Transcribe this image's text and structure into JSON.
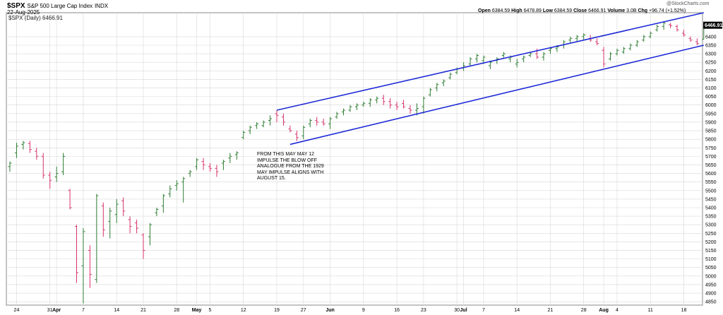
{
  "header": {
    "symbol": "$SPX",
    "name": "S&P 500 Large Cap Index",
    "exchange": "INDX",
    "date": "22-Aug-2025",
    "legend": "$SPX (Daily) 6466.91",
    "brand": "@StockCharts.com",
    "ohlc": {
      "open_label": "Open",
      "open": "6384.59",
      "high_label": "High",
      "high": "6478.89",
      "low_label": "Low",
      "low": "6384.59",
      "close_label": "Close",
      "close": "6466.91",
      "volume_label": "Volume",
      "volume": "3.0B",
      "chg_label": "Chg",
      "chg": "+96.74 (+1.52%)"
    }
  },
  "annotation": [
    "FROM THIS MAY MAY 12",
    "IMPULSE THE BLOW OFF",
    "ANALOGUE FROM THE 1929",
    "MAY IMPULSE ALIGNS WITH",
    "AUGUST 15."
  ],
  "colors": {
    "up": "#2e7d32",
    "down": "#d6336c",
    "channel": "#1f2bd6",
    "grid": "#d8d8d8",
    "last_price_box": "#000000"
  },
  "chart_data": {
    "type": "ohlc",
    "title": "$SPX (Daily) 6466.91",
    "ylim": [
      4830,
      6540
    ],
    "y_ticks": [
      4850,
      4900,
      4950,
      5000,
      5050,
      5100,
      5150,
      5200,
      5250,
      5300,
      5350,
      5400,
      5450,
      5500,
      5550,
      5600,
      5650,
      5700,
      5750,
      5800,
      5850,
      5900,
      5950,
      6000,
      6050,
      6100,
      6150,
      6200,
      6250,
      6300,
      6350,
      6400
    ],
    "last_price": "6466.91",
    "x_tick_labels": [
      {
        "i": 1,
        "label": "24",
        "bold": false
      },
      {
        "i": 6,
        "label": "31",
        "bold": false
      },
      {
        "i": 7,
        "label": "Apr",
        "bold": true
      },
      {
        "i": 11,
        "label": "7",
        "bold": false
      },
      {
        "i": 16,
        "label": "14",
        "bold": false
      },
      {
        "i": 20,
        "label": "21",
        "bold": false
      },
      {
        "i": 25,
        "label": "28",
        "bold": false
      },
      {
        "i": 28,
        "label": "May",
        "bold": true
      },
      {
        "i": 30,
        "label": "5",
        "bold": false
      },
      {
        "i": 35,
        "label": "12",
        "bold": false
      },
      {
        "i": 40,
        "label": "19",
        "bold": false
      },
      {
        "i": 44,
        "label": "27",
        "bold": false
      },
      {
        "i": 48,
        "label": "Jun",
        "bold": true
      },
      {
        "i": 53,
        "label": "9",
        "bold": false
      },
      {
        "i": 58,
        "label": "16",
        "bold": false
      },
      {
        "i": 62,
        "label": "23",
        "bold": false
      },
      {
        "i": 67,
        "label": "30",
        "bold": false
      },
      {
        "i": 68,
        "label": "Jul",
        "bold": true
      },
      {
        "i": 71,
        "label": "7",
        "bold": false
      },
      {
        "i": 76,
        "label": "14",
        "bold": false
      },
      {
        "i": 81,
        "label": "21",
        "bold": false
      },
      {
        "i": 86,
        "label": "28",
        "bold": false
      },
      {
        "i": 89,
        "label": "Aug",
        "bold": true
      },
      {
        "i": 91,
        "label": "4",
        "bold": false
      },
      {
        "i": 96,
        "label": "11",
        "bold": false
      },
      {
        "i": 101,
        "label": "18",
        "bold": false
      }
    ],
    "bars": [
      [
        5640,
        5670,
        5610,
        5660
      ],
      [
        5720,
        5780,
        5690,
        5760
      ],
      [
        5770,
        5790,
        5740,
        5780
      ],
      [
        5775,
        5790,
        5720,
        5740
      ],
      [
        5730,
        5750,
        5680,
        5700
      ],
      [
        5700,
        5720,
        5570,
        5590
      ],
      [
        5590,
        5610,
        5510,
        5560
      ],
      [
        5580,
        5640,
        5550,
        5600
      ],
      [
        5610,
        5720,
        5590,
        5700
      ],
      [
        5500,
        5510,
        5390,
        5400
      ],
      [
        5290,
        5300,
        4960,
        5020
      ],
      [
        5060,
        5280,
        4840,
        5260
      ],
      [
        5150,
        5180,
        4930,
        5010
      ],
      [
        4980,
        5480,
        4960,
        5470
      ],
      [
        5410,
        5430,
        5230,
        5270
      ],
      [
        5320,
        5400,
        5220,
        5380
      ],
      [
        5360,
        5450,
        5310,
        5420
      ],
      [
        5440,
        5460,
        5350,
        5380
      ],
      [
        5330,
        5350,
        5250,
        5290
      ],
      [
        5310,
        5330,
        5250,
        5280
      ],
      [
        5240,
        5250,
        5100,
        5150
      ],
      [
        5230,
        5310,
        5180,
        5300
      ],
      [
        5370,
        5400,
        5350,
        5390
      ],
      [
        5410,
        5480,
        5370,
        5470
      ],
      [
        5480,
        5530,
        5460,
        5510
      ],
      [
        5530,
        5560,
        5500,
        5540
      ],
      [
        5550,
        5580,
        5430,
        5570
      ],
      [
        5600,
        5620,
        5580,
        5610
      ],
      [
        5640,
        5690,
        5620,
        5680
      ],
      [
        5670,
        5690,
        5620,
        5650
      ],
      [
        5640,
        5660,
        5610,
        5630
      ],
      [
        5630,
        5650,
        5580,
        5610
      ],
      [
        5660,
        5680,
        5620,
        5670
      ],
      [
        5690,
        5720,
        5660,
        5700
      ],
      [
        5710,
        5730,
        5680,
        5720
      ],
      [
        5810,
        5850,
        5800,
        5840
      ],
      [
        5850,
        5880,
        5830,
        5870
      ],
      [
        5880,
        5900,
        5860,
        5890
      ],
      [
        5880,
        5910,
        5870,
        5900
      ],
      [
        5910,
        5940,
        5880,
        5920
      ],
      [
        5950,
        5970,
        5900,
        5940
      ],
      [
        5930,
        5950,
        5880,
        5900
      ],
      [
        5860,
        5880,
        5840,
        5850
      ],
      [
        5830,
        5850,
        5790,
        5810
      ],
      [
        5820,
        5880,
        5800,
        5870
      ],
      [
        5890,
        5920,
        5870,
        5910
      ],
      [
        5910,
        5930,
        5880,
        5900
      ],
      [
        5900,
        5920,
        5880,
        5890
      ],
      [
        5890,
        5930,
        5860,
        5920
      ],
      [
        5930,
        5960,
        5920,
        5950
      ],
      [
        5960,
        5980,
        5940,
        5970
      ],
      [
        5970,
        6000,
        5960,
        5990
      ],
      [
        5990,
        6010,
        5970,
        6000
      ],
      [
        6000,
        6020,
        5990,
        6010
      ],
      [
        6010,
        6040,
        5990,
        6030
      ],
      [
        6030,
        6050,
        6010,
        6040
      ],
      [
        6040,
        6060,
        6000,
        6020
      ],
      [
        6020,
        6040,
        5980,
        6000
      ],
      [
        6000,
        6020,
        5970,
        5990
      ],
      [
        6010,
        6030,
        5980,
        5990
      ],
      [
        5980,
        6000,
        5950,
        5970
      ],
      [
        5970,
        6010,
        5940,
        5980
      ],
      [
        5990,
        6050,
        5950,
        6040
      ],
      [
        6060,
        6100,
        6050,
        6090
      ],
      [
        6100,
        6130,
        6080,
        6120
      ],
      [
        6130,
        6150,
        6110,
        6140
      ],
      [
        6160,
        6190,
        6150,
        6180
      ],
      [
        6190,
        6220,
        6180,
        6210
      ],
      [
        6220,
        6250,
        6200,
        6230
      ],
      [
        6240,
        6280,
        6230,
        6270
      ],
      [
        6270,
        6300,
        6250,
        6290
      ],
      [
        6260,
        6290,
        6240,
        6280
      ],
      [
        6230,
        6260,
        6210,
        6250
      ],
      [
        6260,
        6280,
        6240,
        6270
      ],
      [
        6290,
        6310,
        6270,
        6300
      ],
      [
        6270,
        6290,
        6250,
        6280
      ],
      [
        6240,
        6270,
        6220,
        6250
      ],
      [
        6270,
        6290,
        6250,
        6280
      ],
      [
        6290,
        6310,
        6280,
        6300
      ],
      [
        6300,
        6330,
        6270,
        6280
      ],
      [
        6280,
        6310,
        6260,
        6300
      ],
      [
        6320,
        6340,
        6300,
        6330
      ],
      [
        6330,
        6350,
        6310,
        6340
      ],
      [
        6350,
        6380,
        6330,
        6370
      ],
      [
        6380,
        6400,
        6360,
        6390
      ],
      [
        6390,
        6410,
        6370,
        6400
      ],
      [
        6400,
        6420,
        6380,
        6410
      ],
      [
        6390,
        6410,
        6370,
        6380
      ],
      [
        6370,
        6390,
        6350,
        6360
      ],
      [
        6320,
        6340,
        6220,
        6240
      ],
      [
        6270,
        6310,
        6260,
        6300
      ],
      [
        6300,
        6330,
        6290,
        6320
      ],
      [
        6310,
        6340,
        6300,
        6330
      ],
      [
        6330,
        6360,
        6320,
        6350
      ],
      [
        6350,
        6380,
        6340,
        6370
      ],
      [
        6380,
        6410,
        6370,
        6400
      ],
      [
        6400,
        6430,
        6390,
        6420
      ],
      [
        6440,
        6470,
        6430,
        6460
      ],
      [
        6460,
        6490,
        6440,
        6480
      ],
      [
        6470,
        6480,
        6450,
        6465
      ],
      [
        6460,
        6470,
        6430,
        6440
      ],
      [
        6420,
        6440,
        6400,
        6410
      ],
      [
        6390,
        6400,
        6370,
        6380
      ],
      [
        6370,
        6390,
        6350,
        6360
      ],
      [
        6384.59,
        6478.89,
        6384.59,
        6466.91
      ]
    ],
    "channel_lines": [
      {
        "x": [
          40,
          104
        ],
        "y": [
          5970,
          6540
        ]
      },
      {
        "x": [
          42,
          104
        ],
        "y": [
          5770,
          6350
        ]
      }
    ]
  }
}
